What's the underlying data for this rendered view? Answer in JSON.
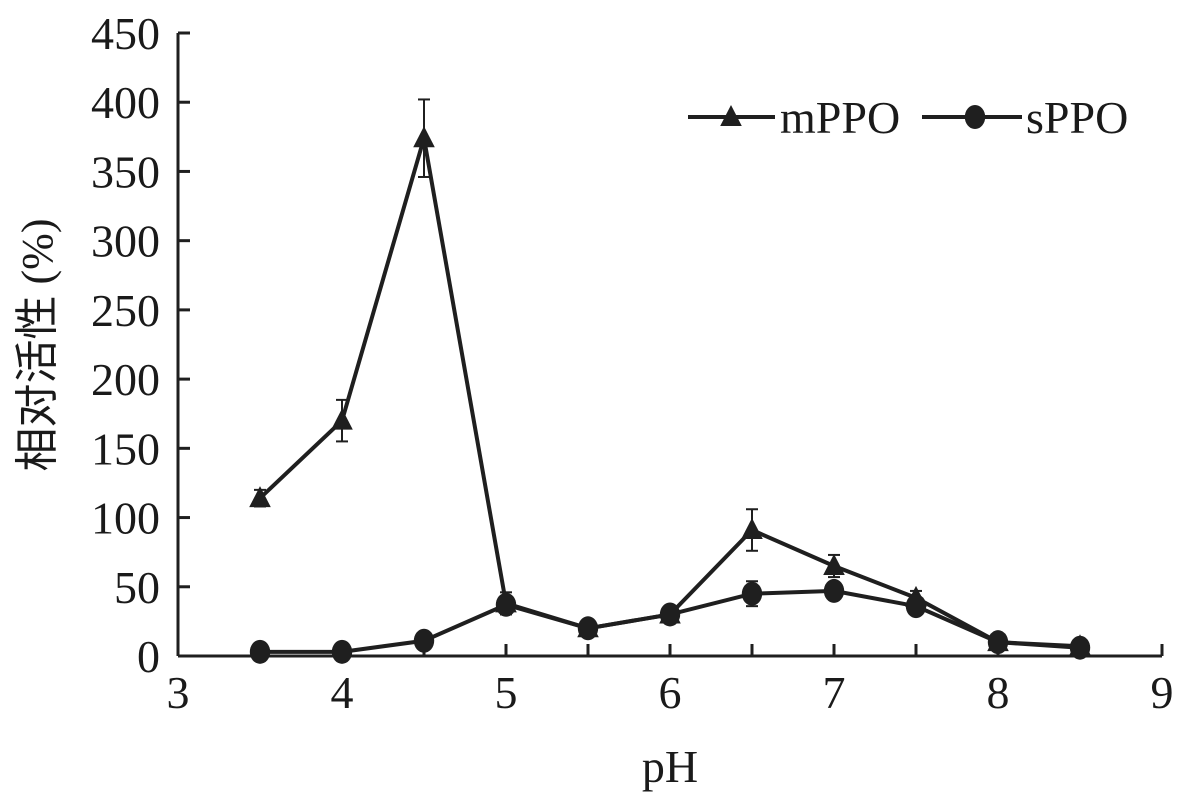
{
  "chart_data": {
    "type": "line",
    "title": "",
    "xlabel": "pH",
    "ylabel": "相对活性 (%)",
    "xlim": [
      3,
      9
    ],
    "ylim": [
      0,
      450
    ],
    "xticks": [
      3,
      4,
      5,
      6,
      7,
      8,
      9
    ],
    "yticks": [
      0,
      50,
      100,
      150,
      200,
      250,
      300,
      350,
      400,
      450
    ],
    "grid": false,
    "legend_position": "top-right",
    "x": [
      3.5,
      4,
      4.5,
      5,
      5.5,
      6,
      6.5,
      7,
      7.5,
      8,
      8.5
    ],
    "series": [
      {
        "name": "mPPO",
        "marker": "triangle",
        "values": [
          114,
          170,
          374,
          38,
          20,
          30,
          91,
          65,
          42,
          10,
          7
        ],
        "errors": [
          6,
          15,
          28,
          8,
          4,
          4,
          15,
          8,
          5,
          3,
          2
        ]
      },
      {
        "name": "sPPO",
        "marker": "circle",
        "values": [
          3,
          3,
          11,
          37,
          20,
          30,
          45,
          47,
          36,
          10,
          6
        ],
        "errors": [
          1,
          1,
          4,
          6,
          6,
          4,
          9,
          5,
          5,
          3,
          2
        ]
      }
    ],
    "colors": {
      "line": "#1f1f1f"
    }
  }
}
